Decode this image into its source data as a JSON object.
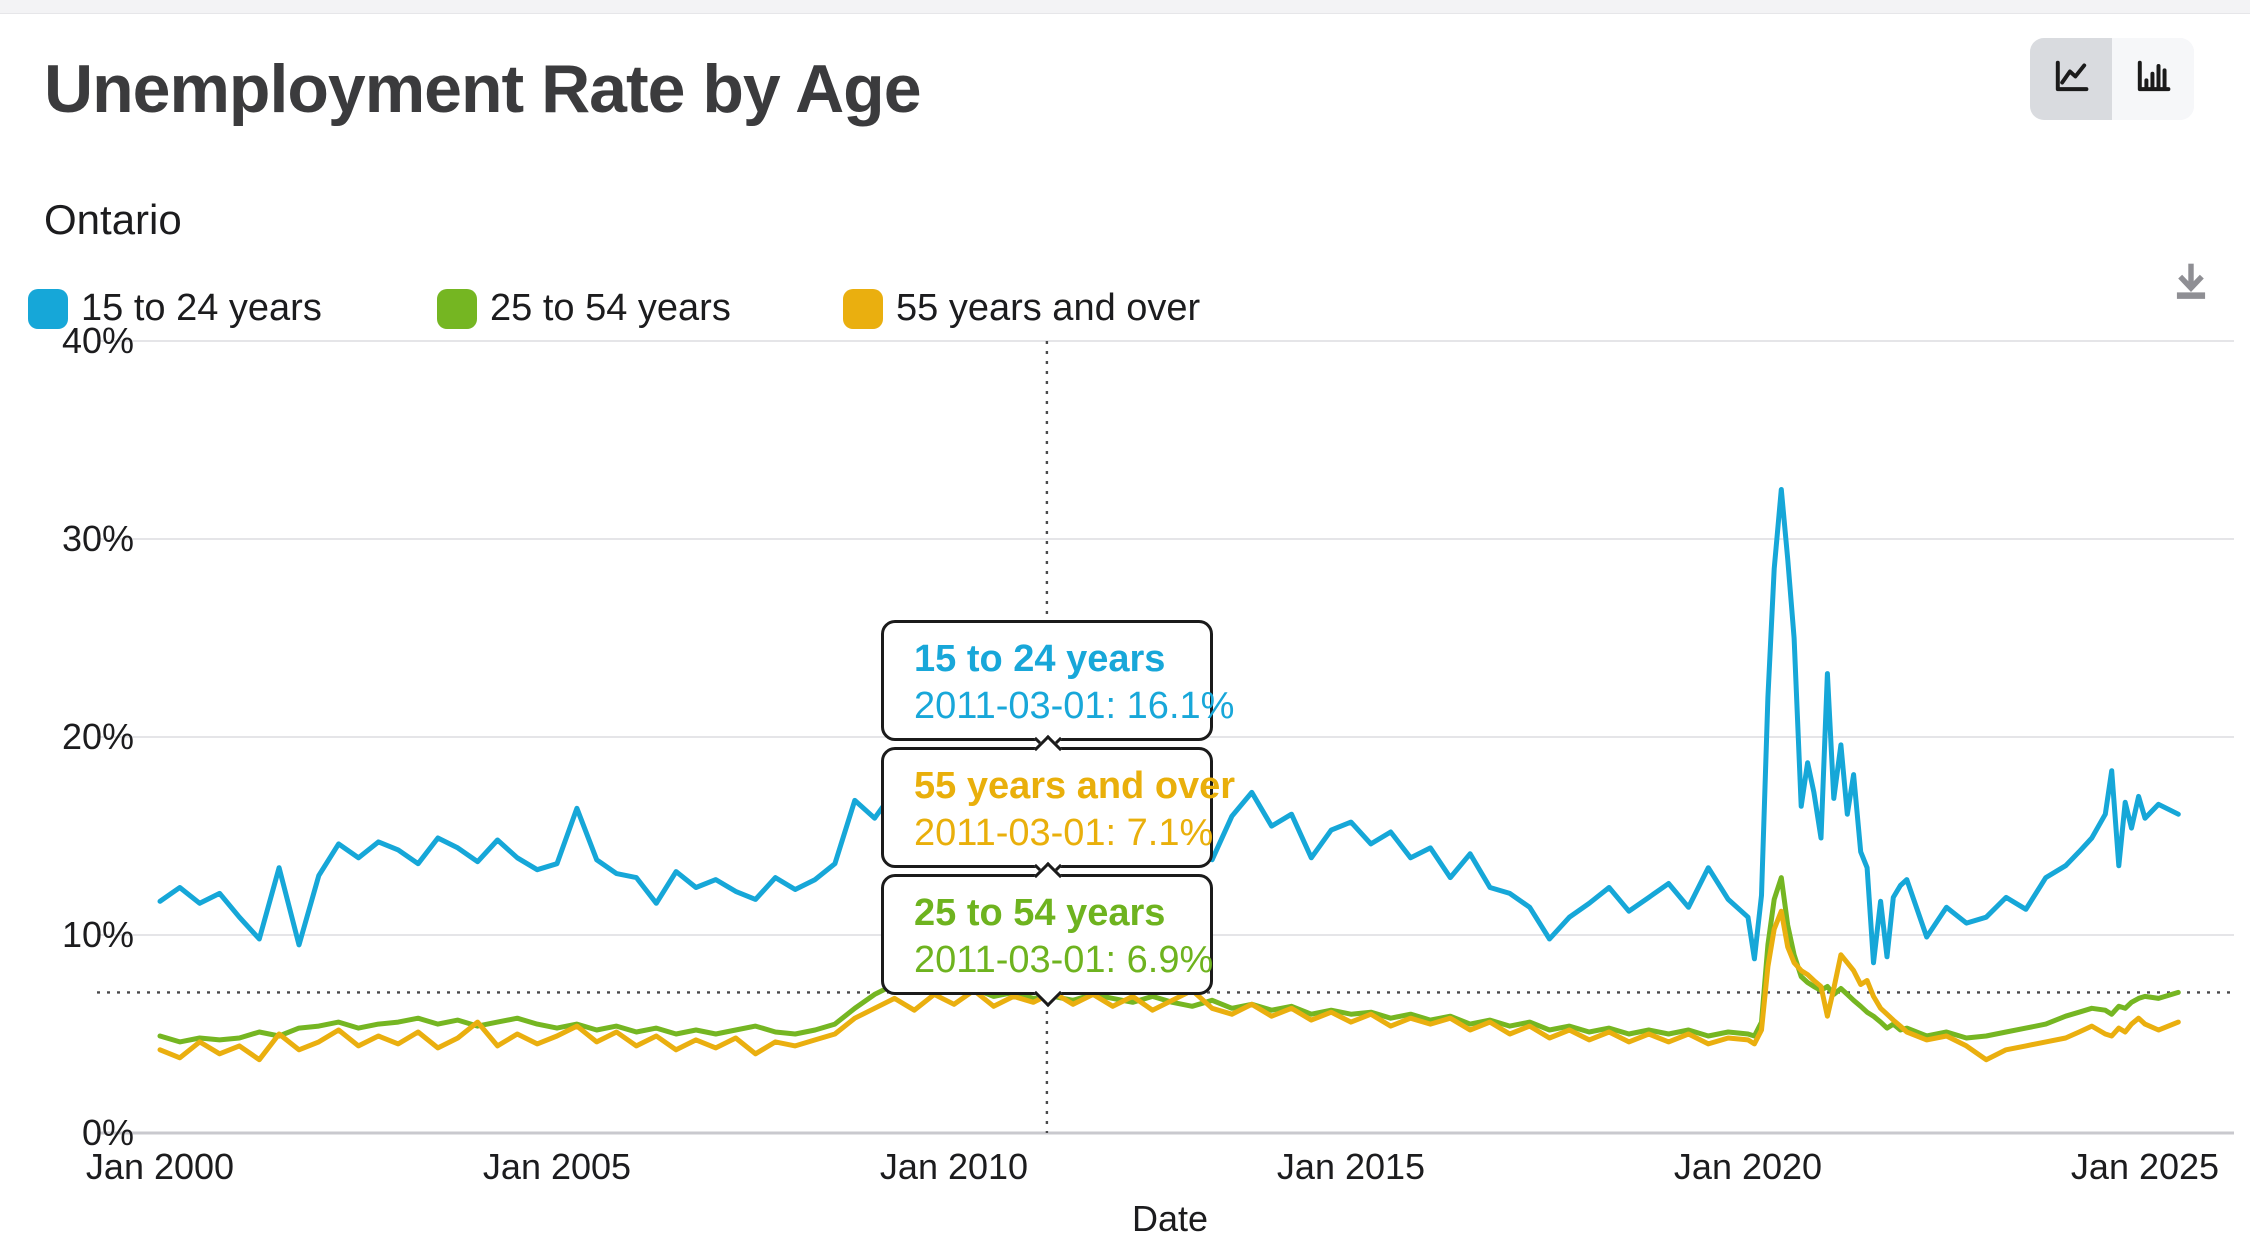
{
  "page": {
    "title": "Unemployment Rate by Age",
    "subtitle": "Ontario",
    "date_axis_label": "Date"
  },
  "toolbar": {
    "chart_type_selected": "line",
    "icons": [
      "line-chart-icon",
      "bar-chart-icon",
      "download-icon"
    ]
  },
  "legend": {
    "items": [
      {
        "label": "15 to 24 years",
        "color": "#16a7d8"
      },
      {
        "label": "25 to 54 years",
        "color": "#75b622"
      },
      {
        "label": "55 years and over",
        "color": "#eaaf0f"
      }
    ]
  },
  "tooltips": [
    {
      "series": "15 to 24 years",
      "text": "2011-03-01: 16.1%",
      "color": "#18a7d9"
    },
    {
      "series": "55 years and over",
      "text": "2011-03-01: 7.1%",
      "color": "#e9af0b"
    },
    {
      "series": "25 to 54 years",
      "text": "2011-03-01: 6.9%",
      "color": "#6eb31f"
    }
  ],
  "chart_data": {
    "type": "line",
    "title": "Unemployment Rate by Age",
    "subtitle": "Ontario",
    "xlabel": "Date",
    "ylabel": "",
    "ylim": [
      0,
      40
    ],
    "grid": "horizontal",
    "legend_position": "top",
    "y_ticks": [
      {
        "value": 0,
        "label": "0%"
      },
      {
        "value": 10,
        "label": "10%"
      },
      {
        "value": 20,
        "label": "20%"
      },
      {
        "value": 30,
        "label": "30%"
      },
      {
        "value": 40,
        "label": "40%"
      }
    ],
    "x_ticks": [
      {
        "year": 2000,
        "label": "Jan 2000"
      },
      {
        "year": 2005,
        "label": "Jan 2005"
      },
      {
        "year": 2010,
        "label": "Jan 2010"
      },
      {
        "year": 2015,
        "label": "Jan 2015"
      },
      {
        "year": 2020,
        "label": "Jan 2020"
      },
      {
        "year": 2025,
        "label": "Jan 2025"
      }
    ],
    "crosshair": {
      "date": "2011-03-01",
      "x_year": 2011.17,
      "y_value": 7.1
    },
    "x": [
      2000.0,
      2000.25,
      2000.5,
      2000.75,
      2001.0,
      2001.25,
      2001.5,
      2001.75,
      2002.0,
      2002.25,
      2002.5,
      2002.75,
      2003.0,
      2003.25,
      2003.5,
      2003.75,
      2004.0,
      2004.25,
      2004.5,
      2004.75,
      2005.0,
      2005.25,
      2005.5,
      2005.75,
      2006.0,
      2006.25,
      2006.5,
      2006.75,
      2007.0,
      2007.25,
      2007.5,
      2007.75,
      2008.0,
      2008.25,
      2008.5,
      2008.75,
      2009.0,
      2009.25,
      2009.5,
      2009.75,
      2010.0,
      2010.25,
      2010.5,
      2010.75,
      2011.0,
      2011.25,
      2011.5,
      2011.75,
      2012.0,
      2012.25,
      2012.5,
      2012.75,
      2013.0,
      2013.25,
      2013.5,
      2013.75,
      2014.0,
      2014.25,
      2014.5,
      2014.75,
      2015.0,
      2015.25,
      2015.5,
      2015.75,
      2016.0,
      2016.25,
      2016.5,
      2016.75,
      2017.0,
      2017.25,
      2017.5,
      2017.75,
      2018.0,
      2018.25,
      2018.5,
      2018.75,
      2019.0,
      2019.25,
      2019.5,
      2019.75,
      2020.0,
      2020.08,
      2020.17,
      2020.25,
      2020.33,
      2020.42,
      2020.5,
      2020.58,
      2020.67,
      2020.75,
      2020.83,
      2020.92,
      2021.0,
      2021.08,
      2021.17,
      2021.25,
      2021.33,
      2021.42,
      2021.5,
      2021.58,
      2021.67,
      2021.75,
      2021.83,
      2021.92,
      2022.0,
      2022.25,
      2022.5,
      2022.75,
      2023.0,
      2023.25,
      2023.5,
      2023.75,
      2024.0,
      2024.17,
      2024.33,
      2024.5,
      2024.58,
      2024.67,
      2024.75,
      2024.83,
      2024.92,
      2025.0,
      2025.17,
      2025.42
    ],
    "series": [
      {
        "name": "15 to 24 years",
        "color": "#16a7d8",
        "values": [
          11.7,
          12.4,
          11.6,
          12.1,
          10.9,
          9.8,
          13.4,
          9.5,
          13.0,
          14.6,
          13.9,
          14.7,
          14.3,
          13.6,
          14.9,
          14.4,
          13.7,
          14.8,
          13.9,
          13.3,
          13.6,
          16.4,
          13.8,
          13.1,
          12.9,
          11.6,
          13.2,
          12.4,
          12.8,
          12.2,
          11.8,
          12.9,
          12.3,
          12.8,
          13.6,
          16.8,
          15.9,
          17.3,
          17.9,
          17.1,
          17.5,
          16.8,
          16.2,
          16.6,
          16.4,
          16.1,
          17.4,
          15.8,
          16.9,
          16.2,
          17.5,
          16.1,
          16.6,
          13.8,
          16.0,
          17.2,
          15.5,
          16.1,
          13.9,
          15.3,
          15.7,
          14.6,
          15.2,
          13.9,
          14.4,
          12.9,
          14.1,
          12.4,
          12.1,
          11.4,
          9.8,
          10.9,
          11.6,
          12.4,
          11.2,
          11.9,
          12.6,
          11.4,
          13.4,
          11.8,
          10.9,
          8.8,
          12.0,
          22.0,
          28.5,
          32.5,
          29.0,
          25.0,
          16.5,
          18.7,
          17.2,
          14.9,
          23.2,
          16.9,
          19.6,
          16.1,
          18.1,
          14.2,
          13.4,
          8.6,
          11.7,
          8.9,
          11.9,
          12.5,
          12.8,
          9.9,
          11.4,
          10.6,
          10.9,
          11.9,
          11.3,
          12.9,
          13.5,
          14.2,
          14.9,
          16.1,
          18.3,
          13.5,
          16.7,
          15.4,
          17.0,
          15.9,
          16.6,
          16.1
        ]
      },
      {
        "name": "25 to 54 years",
        "color": "#75b622",
        "values": [
          4.9,
          4.6,
          4.8,
          4.7,
          4.8,
          5.1,
          4.9,
          5.3,
          5.4,
          5.6,
          5.3,
          5.5,
          5.6,
          5.8,
          5.5,
          5.7,
          5.4,
          5.6,
          5.8,
          5.5,
          5.3,
          5.5,
          5.2,
          5.4,
          5.1,
          5.3,
          5.0,
          5.2,
          5.0,
          5.2,
          5.4,
          5.1,
          5.0,
          5.2,
          5.5,
          6.3,
          7.0,
          7.5,
          7.2,
          7.4,
          7.1,
          7.3,
          6.9,
          7.1,
          6.8,
          6.9,
          6.7,
          7.0,
          6.8,
          6.6,
          6.9,
          6.6,
          6.4,
          6.7,
          6.3,
          6.5,
          6.2,
          6.4,
          6.0,
          6.2,
          6.0,
          6.1,
          5.8,
          6.0,
          5.7,
          5.9,
          5.5,
          5.7,
          5.4,
          5.6,
          5.2,
          5.4,
          5.1,
          5.3,
          5.0,
          5.2,
          5.0,
          5.2,
          4.9,
          5.1,
          5.0,
          4.9,
          5.6,
          9.5,
          11.8,
          12.9,
          10.5,
          9.0,
          7.9,
          7.6,
          7.4,
          7.2,
          7.4,
          7.0,
          7.3,
          7.0,
          6.7,
          6.4,
          6.1,
          5.9,
          5.6,
          5.3,
          5.5,
          5.2,
          5.3,
          4.9,
          5.1,
          4.8,
          4.9,
          5.1,
          5.3,
          5.5,
          5.9,
          6.1,
          6.3,
          6.2,
          6.0,
          6.4,
          6.3,
          6.6,
          6.8,
          6.9,
          6.8,
          7.1
        ]
      },
      {
        "name": "55 years and over",
        "color": "#eaaf0f",
        "values": [
          4.2,
          3.8,
          4.6,
          4.0,
          4.4,
          3.7,
          5.0,
          4.2,
          4.6,
          5.2,
          4.4,
          4.9,
          4.5,
          5.1,
          4.3,
          4.8,
          5.6,
          4.4,
          5.0,
          4.5,
          4.9,
          5.4,
          4.6,
          5.1,
          4.4,
          4.9,
          4.2,
          4.7,
          4.3,
          4.8,
          4.0,
          4.6,
          4.4,
          4.7,
          5.0,
          5.8,
          6.3,
          6.8,
          6.2,
          7.0,
          6.5,
          7.2,
          6.4,
          6.9,
          6.6,
          7.1,
          6.5,
          7.0,
          6.4,
          6.9,
          6.2,
          6.7,
          7.2,
          6.3,
          6.0,
          6.5,
          5.9,
          6.3,
          5.7,
          6.1,
          5.6,
          6.0,
          5.4,
          5.8,
          5.5,
          5.8,
          5.2,
          5.6,
          5.0,
          5.4,
          4.8,
          5.2,
          4.7,
          5.1,
          4.6,
          5.0,
          4.6,
          5.0,
          4.5,
          4.8,
          4.7,
          4.5,
          5.2,
          8.4,
          10.3,
          11.2,
          9.4,
          8.6,
          8.2,
          8.0,
          7.7,
          7.4,
          5.9,
          7.3,
          9.0,
          8.6,
          8.2,
          7.5,
          7.7,
          6.9,
          6.3,
          6.0,
          5.7,
          5.4,
          5.1,
          4.7,
          4.9,
          4.4,
          3.7,
          4.2,
          4.4,
          4.6,
          4.8,
          5.1,
          5.4,
          5.0,
          4.9,
          5.3,
          5.1,
          5.5,
          5.8,
          5.5,
          5.2,
          5.6
        ]
      }
    ]
  }
}
